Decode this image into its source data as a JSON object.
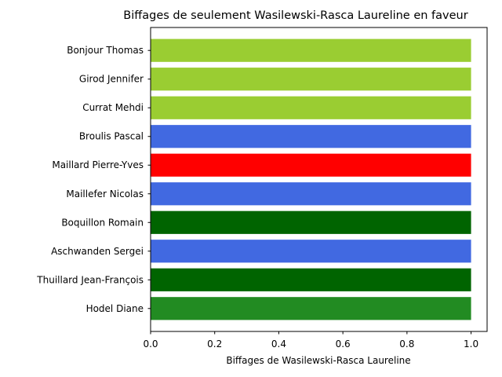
{
  "chart_data": {
    "type": "bar",
    "orientation": "horizontal",
    "title": "Biffages de seulement Wasilewski-Rasca Laureline en faveur",
    "xlabel": "Biffages de Wasilewski-Rasca Laureline",
    "ylabel": "",
    "xlim": [
      0,
      1.05
    ],
    "xticks": [
      "0.0",
      "0.2",
      "0.4",
      "0.6",
      "0.8",
      "1.0"
    ],
    "categories": [
      "Bonjour Thomas",
      "Girod Jennifer",
      "Currat Mehdi",
      "Broulis Pascal",
      "Maillard Pierre-Yves",
      "Maillefer Nicolas",
      "Boquillon Romain",
      "Aschwanden Sergei",
      "Thuillard Jean-François",
      "Hodel Diane"
    ],
    "values": [
      1,
      1,
      1,
      1,
      1,
      1,
      1,
      1,
      1,
      1
    ],
    "colors": [
      "#9acd32",
      "#9acd32",
      "#9acd32",
      "#4169e1",
      "#ff0000",
      "#4169e1",
      "#006400",
      "#4169e1",
      "#006400",
      "#228b22"
    ],
    "grid": false,
    "legend": "none"
  }
}
